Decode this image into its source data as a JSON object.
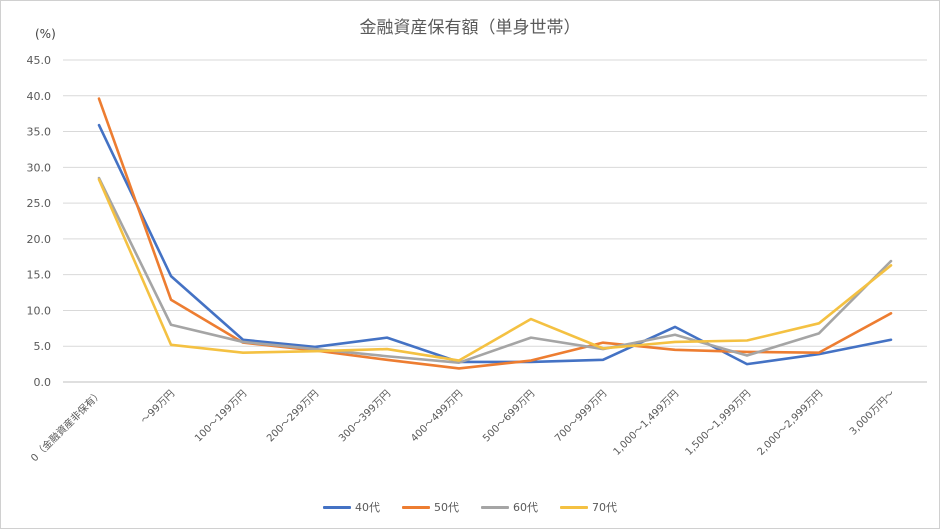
{
  "chart_data": {
    "type": "line",
    "title": "金融資産保有額（単身世帯）",
    "ylabel": "(%)",
    "xlabel": "",
    "ylim": [
      0,
      45
    ],
    "yticks": [
      "0.0",
      "5.0",
      "10.0",
      "15.0",
      "20.0",
      "25.0",
      "30.0",
      "35.0",
      "40.0",
      "45.0"
    ],
    "grid": true,
    "legend": "bottom",
    "categories": [
      "0（金融資産非保有）",
      "～99万円",
      "100～199万円",
      "200～299万円",
      "300～399万円",
      "400～499万円",
      "500～699万円",
      "700～999万円",
      "1,000～1,499万円",
      "1,500～1,999万円",
      "2,000～2,999万円",
      "3,000万円～"
    ],
    "series": [
      {
        "name": "40代",
        "color": "#4472c4",
        "values": [
          35.9,
          14.8,
          5.9,
          4.9,
          6.2,
          2.8,
          2.8,
          3.1,
          7.7,
          2.5,
          3.9,
          5.9
        ]
      },
      {
        "name": "50代",
        "color": "#ed7d31",
        "values": [
          39.6,
          11.5,
          5.5,
          4.4,
          3.1,
          1.9,
          3.0,
          5.5,
          4.5,
          4.2,
          4.1,
          9.6
        ]
      },
      {
        "name": "60代",
        "color": "#a5a5a5",
        "values": [
          28.5,
          8.0,
          5.6,
          4.6,
          3.6,
          2.7,
          6.2,
          4.6,
          6.6,
          3.7,
          6.8,
          16.9
        ]
      },
      {
        "name": "70代",
        "color": "#f4c142",
        "values": [
          28.3,
          5.2,
          4.1,
          4.3,
          4.6,
          3.0,
          8.8,
          4.7,
          5.6,
          5.8,
          8.2,
          16.3
        ]
      }
    ]
  }
}
